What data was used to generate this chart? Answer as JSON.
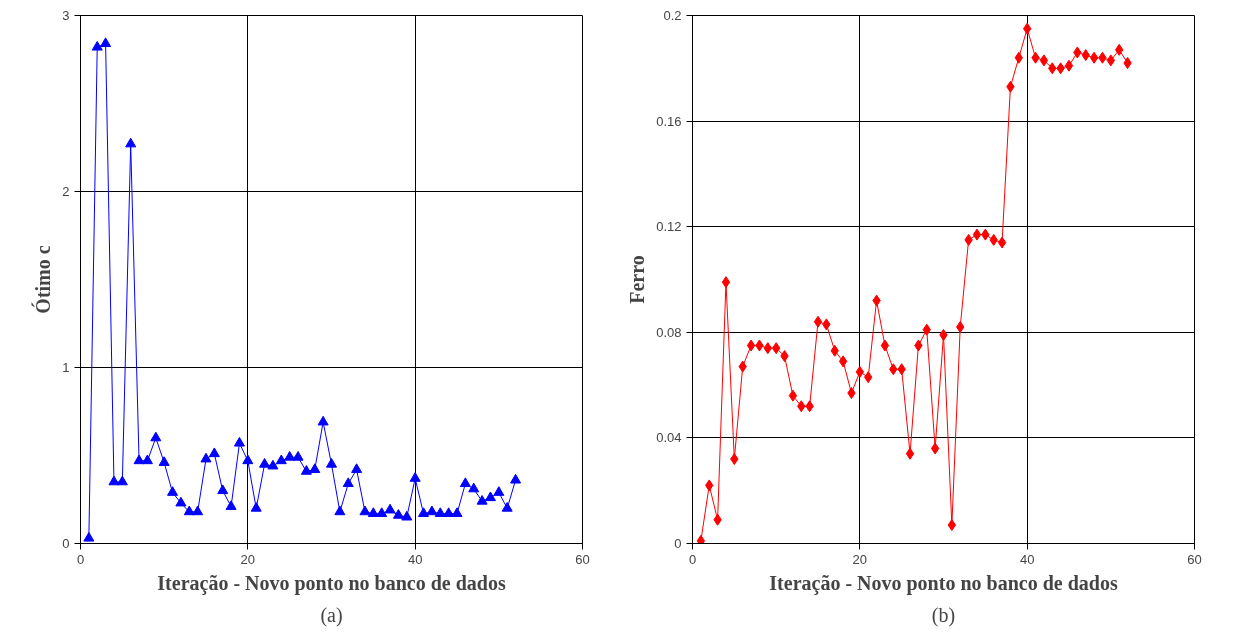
{
  "chart_data": [
    {
      "type": "line",
      "xlabel": "Iteração - Novo ponto no banco de dados",
      "ylabel": "Ótimo c",
      "annotations": [
        "(a)"
      ],
      "x": [
        1,
        2,
        3,
        4,
        5,
        6,
        7,
        8,
        9,
        10,
        11,
        12,
        13,
        14,
        15,
        16,
        17,
        18,
        19,
        20,
        21,
        22,
        23,
        24,
        25,
        26,
        27,
        28,
        29,
        30,
        31,
        32,
        33,
        34,
        35,
        36,
        37,
        38,
        39,
        40,
        41,
        42,
        43,
        44,
        45,
        46,
        47,
        48,
        49,
        50,
        51,
        52
      ],
      "series": [
        {
          "color": "#0000ff",
          "values": [
            0.03,
            2.82,
            2.84,
            0.35,
            0.35,
            2.27,
            0.47,
            0.47,
            0.6,
            0.46,
            0.29,
            0.23,
            0.18,
            0.18,
            0.48,
            0.51,
            0.3,
            0.21,
            0.57,
            0.47,
            0.2,
            0.45,
            0.44,
            0.47,
            0.49,
            0.49,
            0.41,
            0.42,
            0.69,
            0.45,
            0.18,
            0.34,
            0.42,
            0.18,
            0.17,
            0.17,
            0.19,
            0.16,
            0.15,
            0.37,
            0.17,
            0.18,
            0.17,
            0.17,
            0.17,
            0.34,
            0.31,
            0.24,
            0.26,
            0.29,
            0.2,
            0.36
          ]
        }
      ],
      "xlim": [
        0,
        60
      ],
      "xticks": [
        0,
        20,
        40,
        60
      ],
      "ylim": [
        0,
        3
      ],
      "yticks": [
        0,
        1,
        2,
        3
      ],
      "grid": true,
      "marker": "triangle",
      "line_style": "solid"
    },
    {
      "type": "line",
      "xlabel": "Iteração - Novo ponto no banco de dados",
      "ylabel": "Ferro",
      "annotations": [
        "(b)"
      ],
      "x": [
        1,
        2,
        3,
        4,
        5,
        6,
        7,
        8,
        9,
        10,
        11,
        12,
        13,
        14,
        15,
        16,
        17,
        18,
        19,
        20,
        21,
        22,
        23,
        24,
        25,
        26,
        27,
        28,
        29,
        30,
        31,
        32,
        33,
        34,
        35,
        36,
        37,
        38,
        39,
        40,
        41,
        42,
        43,
        44,
        45,
        46,
        47,
        48,
        49,
        50,
        51,
        52
      ],
      "series": [
        {
          "color": "#ff0000",
          "values": [
            0.001,
            0.022,
            0.009,
            0.099,
            0.032,
            0.067,
            0.075,
            0.075,
            0.074,
            0.074,
            0.071,
            0.056,
            0.052,
            0.052,
            0.084,
            0.083,
            0.073,
            0.069,
            0.057,
            0.065,
            0.063,
            0.092,
            0.075,
            0.066,
            0.066,
            0.034,
            0.075,
            0.081,
            0.036,
            0.079,
            0.007,
            0.082,
            0.115,
            0.117,
            0.117,
            0.115,
            0.114,
            0.173,
            0.184,
            0.195,
            0.184,
            0.183,
            0.18,
            0.18,
            0.181,
            0.186,
            0.185,
            0.184,
            0.184,
            0.183,
            0.187,
            0.182
          ]
        }
      ],
      "xlim": [
        0,
        60
      ],
      "xticks": [
        0,
        20,
        40,
        60
      ],
      "ylim": [
        0,
        0.2
      ],
      "yticks": [
        0,
        0.04,
        0.08,
        0.12,
        0.16,
        0.2
      ],
      "grid": true,
      "marker": "diamond",
      "line_style": "solid"
    }
  ]
}
